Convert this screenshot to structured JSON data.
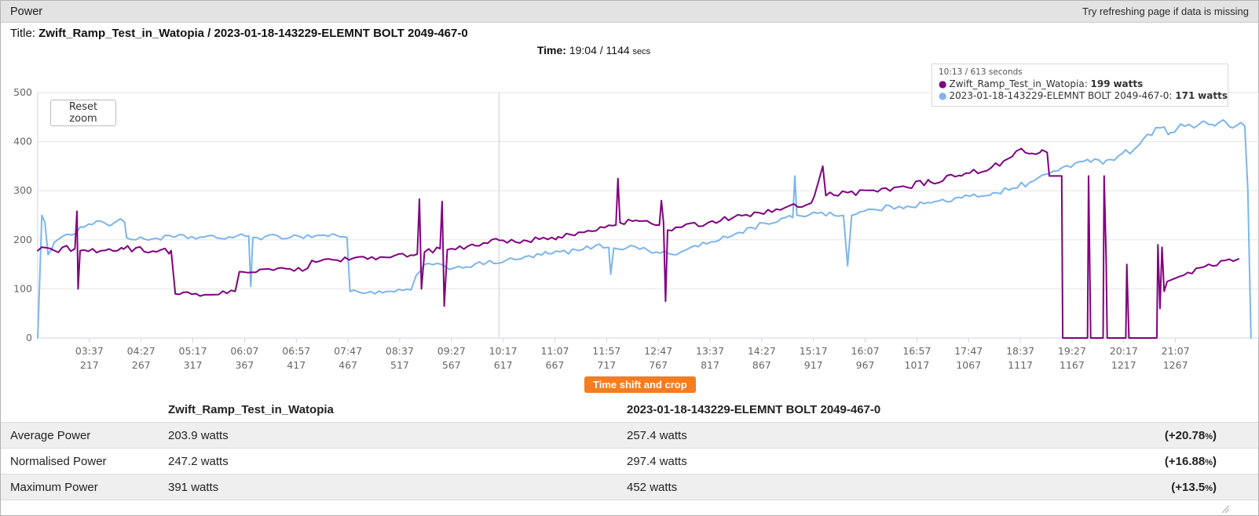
{
  "header": {
    "title": "Power",
    "hint": "Try refreshing page if data is missing"
  },
  "title_row": {
    "label": "Title:",
    "value": "Zwift_Ramp_Test_in_Watopia / 2023-01-18-143229-ELEMNT BOLT 2049-467-0"
  },
  "time_row": {
    "label": "Time:",
    "value": "19:04 / 1144",
    "unit": "secs"
  },
  "chart_data": {
    "type": "line",
    "title": "",
    "xlabel": "",
    "ylabel": "",
    "ylim": [
      0,
      500
    ],
    "yticks": [
      0,
      100,
      200,
      300,
      400,
      500
    ],
    "grid": true,
    "x_domain_seconds": [
      167,
      1347
    ],
    "reset_zoom_label": "Reset zoom",
    "crosshair_seconds": 613,
    "xticks": [
      {
        "time": "03:37",
        "secs": "217"
      },
      {
        "time": "04:27",
        "secs": "267"
      },
      {
        "time": "05:17",
        "secs": "317"
      },
      {
        "time": "06:07",
        "secs": "367"
      },
      {
        "time": "06:57",
        "secs": "417"
      },
      {
        "time": "07:47",
        "secs": "467"
      },
      {
        "time": "08:37",
        "secs": "517"
      },
      {
        "time": "09:27",
        "secs": "567"
      },
      {
        "time": "10:17",
        "secs": "617"
      },
      {
        "time": "11:07",
        "secs": "667"
      },
      {
        "time": "11:57",
        "secs": "717"
      },
      {
        "time": "12:47",
        "secs": "767"
      },
      {
        "time": "13:37",
        "secs": "817"
      },
      {
        "time": "14:27",
        "secs": "867"
      },
      {
        "time": "15:17",
        "secs": "917"
      },
      {
        "time": "16:07",
        "secs": "967"
      },
      {
        "time": "16:57",
        "secs": "1017"
      },
      {
        "time": "17:47",
        "secs": "1067"
      },
      {
        "time": "18:37",
        "secs": "1117"
      },
      {
        "time": "19:27",
        "secs": "1167"
      },
      {
        "time": "20:17",
        "secs": "1217"
      },
      {
        "time": "21:07",
        "secs": "1267"
      }
    ],
    "tooltip": {
      "header": "10:13 / 613 seconds",
      "series": [
        {
          "name": "Zwift_Ramp_Test_in_Watopia",
          "value": "199",
          "unit": "watts",
          "color": "#800080"
        },
        {
          "name": "2023-01-18-143229-ELEMNT BOLT 2049-467-0",
          "value": "171",
          "unit": "watts",
          "color": "#7cb5ec"
        }
      ]
    },
    "series": [
      {
        "name": "2023-01-18-143229-ELEMNT BOLT 2049-467-0",
        "color": "#7cb5ec",
        "keypoints": [
          [
            167,
            0,
            0
          ],
          [
            169,
            120,
            0
          ],
          [
            171,
            250,
            0
          ],
          [
            174,
            235,
            0
          ],
          [
            177,
            170,
            4
          ],
          [
            183,
            195,
            6
          ],
          [
            200,
            210,
            6
          ],
          [
            208,
            226,
            4
          ],
          [
            216,
            232,
            4
          ],
          [
            228,
            238,
            4
          ],
          [
            238,
            230,
            4
          ],
          [
            247,
            243,
            0
          ],
          [
            251,
            236,
            0
          ],
          [
            253,
            204,
            4
          ],
          [
            262,
            200,
            5
          ],
          [
            300,
            206,
            5
          ],
          [
            340,
            204,
            5
          ],
          [
            371,
            208,
            0
          ],
          [
            373,
            105,
            0
          ],
          [
            375,
            205,
            5
          ],
          [
            420,
            207,
            5
          ],
          [
            455,
            210,
            5
          ],
          [
            466,
            205,
            0
          ],
          [
            469,
            95,
            4
          ],
          [
            500,
            92,
            4
          ],
          [
            528,
            98,
            0
          ],
          [
            533,
            128,
            4
          ],
          [
            541,
            150,
            5
          ],
          [
            570,
            143,
            5
          ],
          [
            600,
            152,
            5
          ],
          [
            630,
            160,
            5
          ],
          [
            660,
            172,
            5
          ],
          [
            690,
            178,
            5
          ],
          [
            706,
            188,
            5
          ],
          [
            719,
            185,
            0
          ],
          [
            721,
            130,
            0
          ],
          [
            724,
            183,
            5
          ],
          [
            745,
            186,
            5
          ],
          [
            765,
            175,
            5
          ],
          [
            785,
            170,
            5
          ],
          [
            802,
            188,
            5
          ],
          [
            822,
            196,
            5
          ],
          [
            845,
            215,
            6
          ],
          [
            870,
            234,
            6
          ],
          [
            897,
            245,
            0
          ],
          [
            899,
            330,
            0
          ],
          [
            901,
            250,
            6
          ],
          [
            925,
            256,
            6
          ],
          [
            946,
            250,
            0
          ],
          [
            950,
            147,
            0
          ],
          [
            954,
            250,
            6
          ],
          [
            975,
            262,
            6
          ],
          [
            1000,
            268,
            6
          ],
          [
            1030,
            275,
            6
          ],
          [
            1060,
            285,
            6
          ],
          [
            1090,
            295,
            6
          ],
          [
            1110,
            305,
            7
          ],
          [
            1130,
            320,
            7
          ],
          [
            1145,
            335,
            7
          ],
          [
            1158,
            348,
            7
          ],
          [
            1170,
            356,
            7
          ],
          [
            1185,
            358,
            7
          ],
          [
            1200,
            362,
            7
          ],
          [
            1215,
            375,
            7
          ],
          [
            1228,
            386,
            7
          ],
          [
            1240,
            415,
            7
          ],
          [
            1252,
            428,
            7
          ],
          [
            1262,
            418,
            7
          ],
          [
            1272,
            436,
            6
          ],
          [
            1285,
            428,
            6
          ],
          [
            1295,
            441,
            5
          ],
          [
            1305,
            432,
            5
          ],
          [
            1315,
            441,
            5
          ],
          [
            1322,
            428,
            5
          ],
          [
            1330,
            439,
            0
          ],
          [
            1334,
            432,
            0
          ],
          [
            1337,
            300,
            0
          ],
          [
            1340,
            0,
            0
          ]
        ]
      },
      {
        "name": "Zwift_Ramp_Test_in_Watopia",
        "color": "#800080",
        "keypoints": [
          [
            167,
            178,
            7
          ],
          [
            203,
            182,
            0
          ],
          [
            205,
            258,
            0
          ],
          [
            206,
            100,
            0
          ],
          [
            208,
            178,
            7
          ],
          [
            250,
            181,
            7
          ],
          [
            296,
            178,
            0
          ],
          [
            300,
            90,
            5
          ],
          [
            330,
            88,
            5
          ],
          [
            358,
            95,
            0
          ],
          [
            362,
            135,
            5
          ],
          [
            395,
            138,
            5
          ],
          [
            428,
            142,
            0
          ],
          [
            432,
            158,
            5
          ],
          [
            470,
            161,
            5
          ],
          [
            500,
            165,
            5
          ],
          [
            530,
            168,
            0
          ],
          [
            534,
            171,
            0
          ],
          [
            536,
            283,
            0
          ],
          [
            538,
            100,
            0
          ],
          [
            541,
            175,
            6
          ],
          [
            556,
            182,
            0
          ],
          [
            558,
            278,
            0
          ],
          [
            560,
            65,
            0
          ],
          [
            563,
            180,
            6
          ],
          [
            590,
            188,
            6
          ],
          [
            613,
            199,
            6
          ],
          [
            640,
            198,
            6
          ],
          [
            670,
            206,
            6
          ],
          [
            695,
            215,
            6
          ],
          [
            715,
            225,
            6
          ],
          [
            726,
            230,
            0
          ],
          [
            728,
            325,
            0
          ],
          [
            730,
            235,
            6
          ],
          [
            748,
            238,
            6
          ],
          [
            768,
            230,
            0
          ],
          [
            770,
            280,
            0
          ],
          [
            772,
            235,
            0
          ],
          [
            774,
            75,
            0
          ],
          [
            776,
            220,
            6
          ],
          [
            790,
            226,
            6
          ],
          [
            815,
            235,
            6
          ],
          [
            840,
            246,
            6
          ],
          [
            865,
            255,
            6
          ],
          [
            890,
            266,
            6
          ],
          [
            915,
            275,
            0
          ],
          [
            918,
            290,
            0
          ],
          [
            926,
            350,
            0
          ],
          [
            929,
            290,
            7
          ],
          [
            950,
            296,
            7
          ],
          [
            975,
            301,
            7
          ],
          [
            1000,
            308,
            7
          ],
          [
            1030,
            318,
            7
          ],
          [
            1060,
            330,
            8
          ],
          [
            1085,
            341,
            8
          ],
          [
            1105,
            365,
            8
          ],
          [
            1118,
            386,
            5
          ],
          [
            1128,
            376,
            5
          ],
          [
            1138,
            383,
            0
          ],
          [
            1143,
            378,
            0
          ],
          [
            1145,
            330,
            0
          ],
          [
            1157,
            330,
            0
          ],
          [
            1158,
            0,
            0
          ],
          [
            1182,
            0,
            0
          ],
          [
            1183,
            330,
            0
          ],
          [
            1185,
            0,
            0
          ],
          [
            1197,
            0,
            0
          ],
          [
            1198,
            330,
            0
          ],
          [
            1200,
            160,
            0
          ],
          [
            1201,
            0,
            0
          ],
          [
            1219,
            0,
            0
          ],
          [
            1220,
            150,
            0
          ],
          [
            1222,
            0,
            0
          ],
          [
            1249,
            0,
            0
          ],
          [
            1250,
            190,
            0
          ],
          [
            1252,
            60,
            0
          ],
          [
            1254,
            185,
            0
          ],
          [
            1256,
            95,
            0
          ],
          [
            1259,
            115,
            6
          ],
          [
            1275,
            128,
            6
          ],
          [
            1295,
            145,
            6
          ],
          [
            1315,
            158,
            6
          ],
          [
            1328,
            161,
            0
          ]
        ]
      }
    ]
  },
  "timeshift_button": "Time shift and crop",
  "table": {
    "columns": [
      "",
      "Zwift_Ramp_Test_in_Watopia",
      "2023-01-18-143229-ELEMNT BOLT 2049-467-0",
      ""
    ],
    "rows": [
      {
        "label": "Average Power",
        "a": "203.9 watts",
        "b": "257.4 watts",
        "delta_num": "(+20.78",
        "delta_pct": "%",
        "delta_close": ")"
      },
      {
        "label": "Normalised Power",
        "a": "247.2 watts",
        "b": "297.4 watts",
        "delta_num": "(+16.88",
        "delta_pct": "%",
        "delta_close": ")"
      },
      {
        "label": "Maximum Power",
        "a": "391 watts",
        "b": "452 watts",
        "delta_num": "(+13.5",
        "delta_pct": "%",
        "delta_close": ")"
      }
    ]
  }
}
